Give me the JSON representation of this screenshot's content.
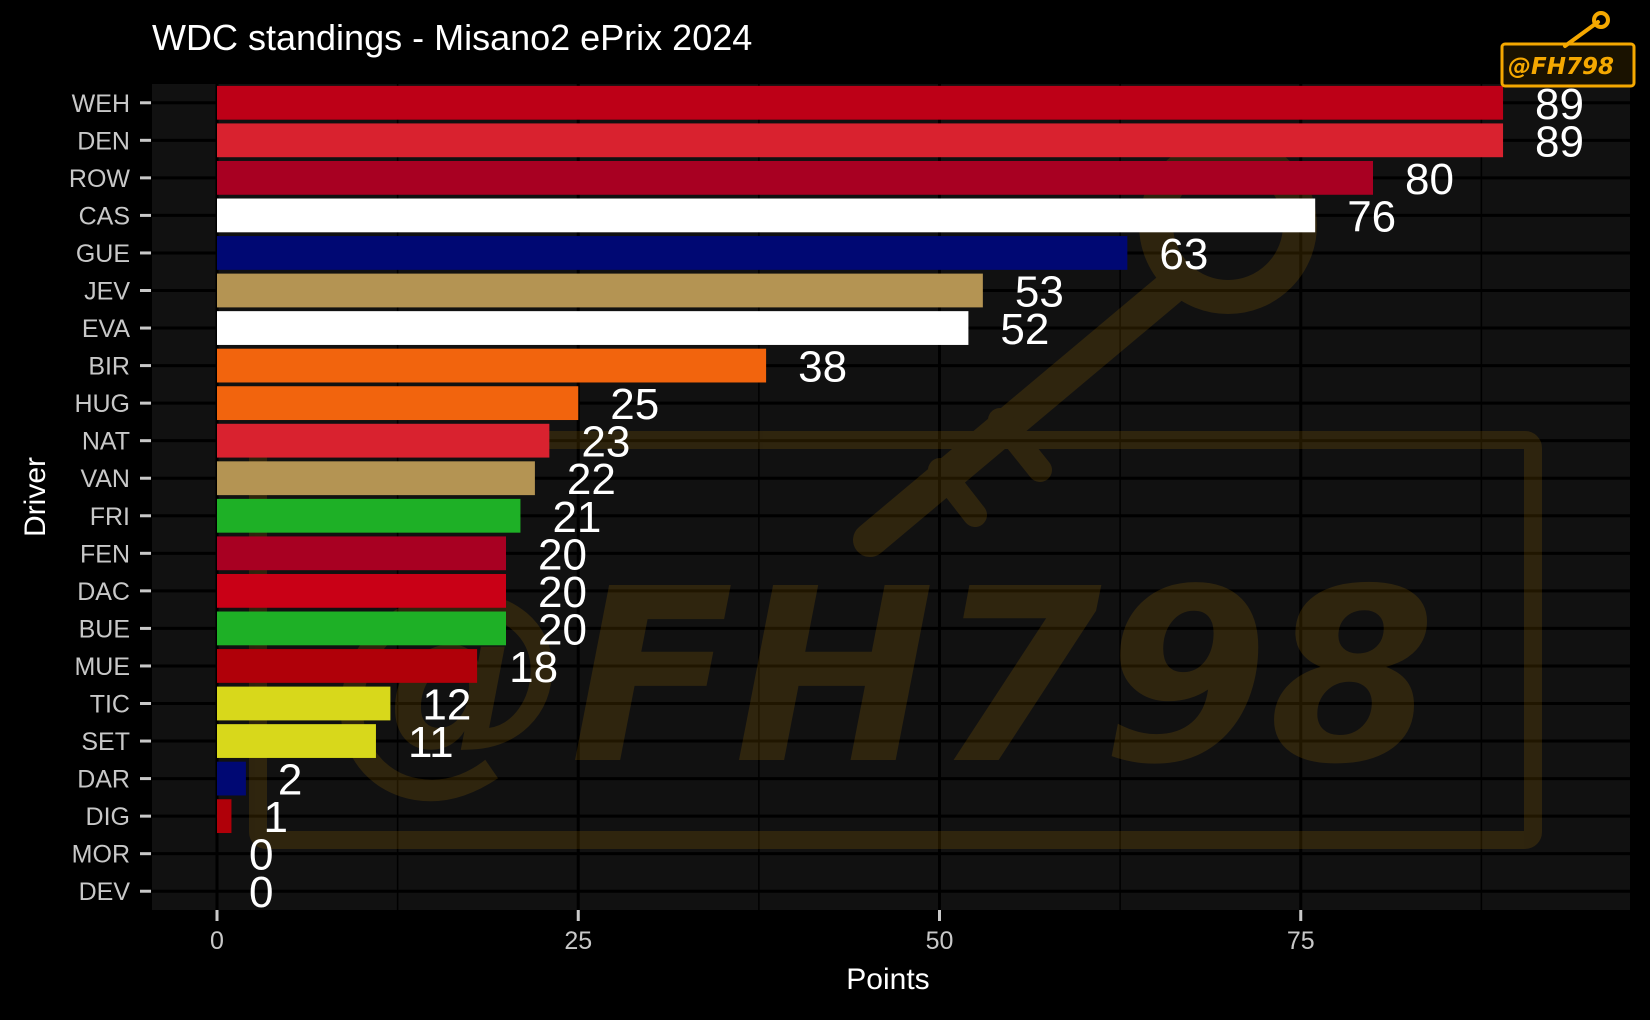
{
  "chart_data": {
    "type": "bar",
    "orientation": "horizontal",
    "title": "WDC standings - Misano2 ePrix 2024",
    "xlabel": "Points",
    "ylabel": "Driver",
    "xlim": [
      0,
      92
    ],
    "x_ticks": [
      0,
      25,
      50,
      75
    ],
    "grid": true,
    "categories": [
      "WEH",
      "DEN",
      "ROW",
      "CAS",
      "GUE",
      "JEV",
      "EVA",
      "BIR",
      "HUG",
      "NAT",
      "VAN",
      "FRI",
      "FEN",
      "DAC",
      "BUE",
      "MUE",
      "TIC",
      "SET",
      "DAR",
      "DIG",
      "MOR",
      "DEV"
    ],
    "values": [
      89,
      89,
      80,
      76,
      63,
      53,
      52,
      38,
      25,
      23,
      22,
      21,
      20,
      20,
      20,
      18,
      12,
      11,
      2,
      1,
      0,
      0
    ],
    "colors": [
      "#bd0017",
      "#d9222f",
      "#a80022",
      "#ffffff",
      "#000873",
      "#b49453",
      "#ffffff",
      "#f2640d",
      "#f2640d",
      "#d9222f",
      "#b49453",
      "#1eb026",
      "#a80022",
      "#c90016",
      "#1eb026",
      "#b00009",
      "#d8d81b",
      "#d8d81b",
      "#000873",
      "#b00009",
      "#000000",
      "#000000"
    ]
  },
  "watermark": {
    "text": "@FH798",
    "color": "#f5a800"
  }
}
